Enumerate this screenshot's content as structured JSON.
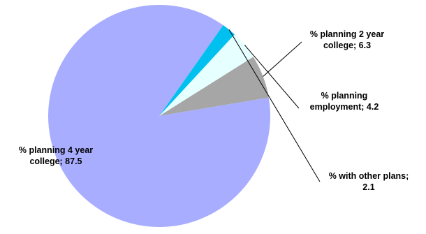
{
  "chart_data": {
    "type": "pie",
    "categories": [
      "% planning 2 year college",
      "% planning employment",
      "% with other plans",
      "% planning 4 year college"
    ],
    "values": [
      6.3,
      4.2,
      2.1,
      87.5
    ],
    "colors": [
      "#a6a6a6",
      "#e6ffff",
      "#00c0f0",
      "#a8adff"
    ],
    "data_labels": [
      {
        "line1": "% planning 2 year",
        "line2": "college; 6.3"
      },
      {
        "line1": "% planning",
        "line2": "employment; 4.2"
      },
      {
        "line1": "% with other plans;",
        "line2": "2.1"
      },
      {
        "line1": "% planning 4 year",
        "line2": "college; 87.5"
      }
    ],
    "legend": "none"
  }
}
